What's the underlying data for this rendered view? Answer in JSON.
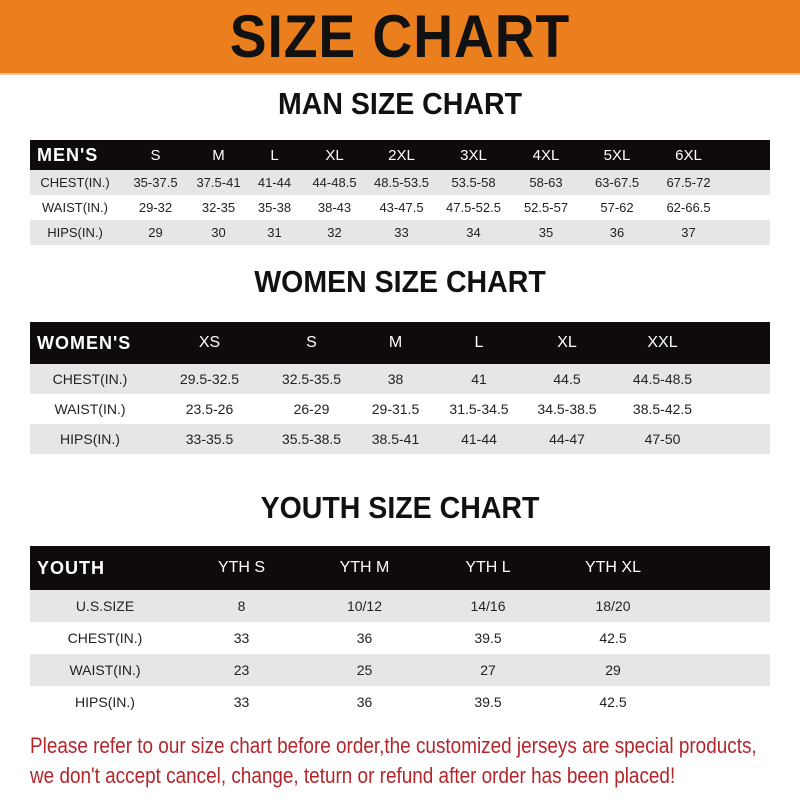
{
  "banner": {
    "title": "SIZE CHART",
    "color": "#eb7f1e"
  },
  "men": {
    "title": "MAN SIZE CHART",
    "header": [
      "MEN'S",
      "S",
      "M",
      "L",
      "XL",
      "2XL",
      "3XL",
      "4XL",
      "5XL",
      "6XL"
    ],
    "rows": [
      [
        "CHEST(IN.)",
        "35-37.5",
        "37.5-41",
        "41-44",
        "44-48.5",
        "48.5-53.5",
        "53.5-58",
        "58-63",
        "63-67.5",
        "67.5-72"
      ],
      [
        "WAIST(IN.)",
        "29-32",
        "32-35",
        "35-38",
        "38-43",
        "43-47.5",
        "47.5-52.5",
        "52.5-57",
        "57-62",
        "62-66.5"
      ],
      [
        "HIPS(IN.)",
        "29",
        "30",
        "31",
        "32",
        "33",
        "34",
        "35",
        "36",
        "37"
      ]
    ]
  },
  "women": {
    "title": "WOMEN SIZE CHART",
    "header": [
      "WOMEN'S",
      "XS",
      "S",
      "M",
      "L",
      "XL",
      "XXL"
    ],
    "rows": [
      [
        "CHEST(IN.)",
        "29.5-32.5",
        "32.5-35.5",
        "38",
        "41",
        "44.5",
        "44.5-48.5"
      ],
      [
        "WAIST(IN.)",
        "23.5-26",
        "26-29",
        "29-31.5",
        "31.5-34.5",
        "34.5-38.5",
        "38.5-42.5"
      ],
      [
        "HIPS(IN.)",
        "33-35.5",
        "35.5-38.5",
        "38.5-41",
        "41-44",
        "44-47",
        "47-50"
      ]
    ]
  },
  "youth": {
    "title": "YOUTH SIZE CHART",
    "header": [
      "YOUTH",
      "YTH S",
      "YTH M",
      "YTH L",
      "YTH XL"
    ],
    "rows": [
      [
        "U.S.SIZE",
        "8",
        "10/12",
        "14/16",
        "18/20"
      ],
      [
        "CHEST(IN.)",
        "33",
        "36",
        "39.5",
        "42.5"
      ],
      [
        "WAIST(IN.)",
        "23",
        "25",
        "27",
        "29"
      ],
      [
        "HIPS(IN.)",
        "33",
        "36",
        "39.5",
        "42.5"
      ]
    ]
  },
  "footer": {
    "line1": "Please refer to our size chart before order,the customized jerseys are special products,",
    "line2": "we don't accept cancel, change, teturn or refund after order has been placed!",
    "color": "#b3262c"
  }
}
